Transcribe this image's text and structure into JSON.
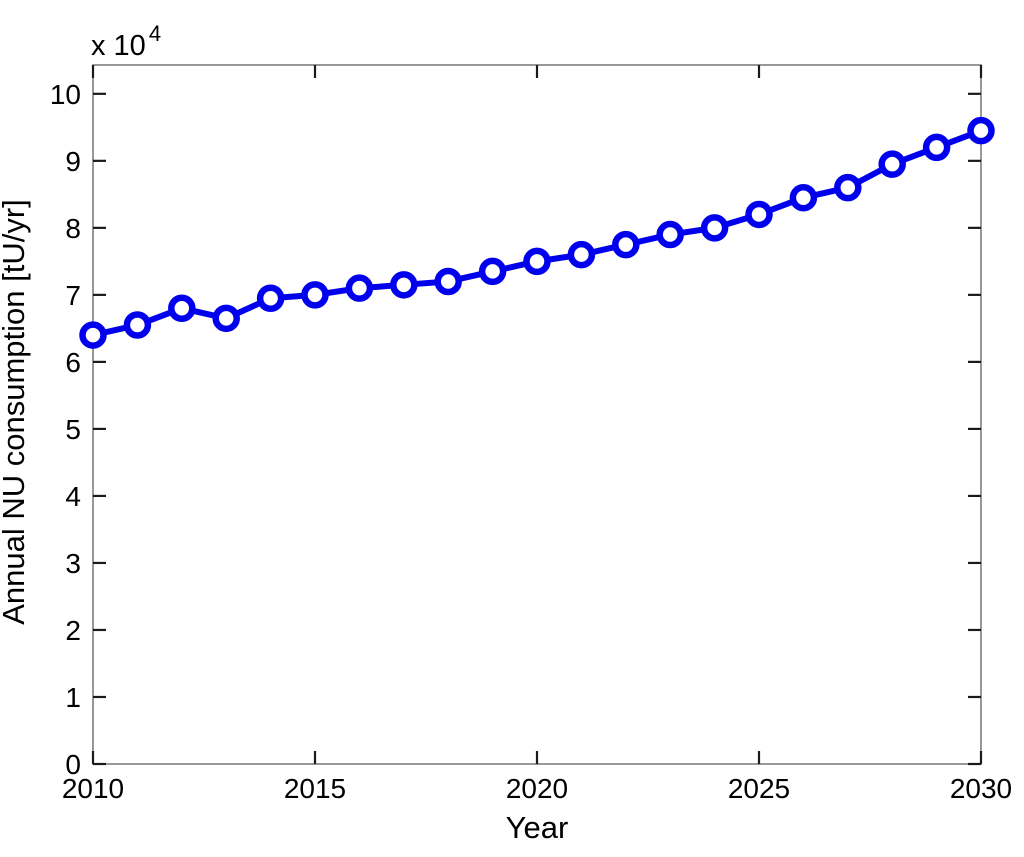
{
  "figure": {
    "background": "#ffffff",
    "y_multiplier_base": "x 10",
    "y_multiplier_exp": "4"
  },
  "chart_data": {
    "type": "line",
    "title": "",
    "xlabel": "Year",
    "ylabel": "Annual NU consumption [tU/yr]",
    "y_unit_note": "y-axis values are in units of 10^4 tU/yr (axis multiplier 'x 10^4')",
    "x": [
      2010,
      2011,
      2012,
      2013,
      2014,
      2015,
      2016,
      2017,
      2018,
      2019,
      2020,
      2021,
      2022,
      2023,
      2024,
      2025,
      2026,
      2027,
      2028,
      2029,
      2030
    ],
    "y_values_x1e4": [
      6.4,
      6.55,
      6.8,
      6.65,
      6.95,
      7.0,
      7.1,
      7.15,
      7.2,
      7.35,
      7.5,
      7.6,
      7.75,
      7.9,
      8.0,
      8.2,
      8.45,
      8.6,
      8.95,
      9.2,
      9.45
    ],
    "x_ticks": [
      2010,
      2015,
      2020,
      2025,
      2030
    ],
    "x_tick_labels": [
      "2010",
      "2015",
      "2020",
      "2025",
      "2030"
    ],
    "y_ticks": [
      0,
      1,
      2,
      3,
      4,
      5,
      6,
      7,
      8,
      9,
      10
    ],
    "y_tick_labels": [
      "0",
      "1",
      "2",
      "3",
      "4",
      "5",
      "6",
      "7",
      "8",
      "9",
      "10"
    ],
    "xlim": [
      2010,
      2030
    ],
    "ylim": [
      0,
      10.43
    ],
    "grid": false,
    "legend": null,
    "line_color": "#0000ee",
    "marker": "circle",
    "marker_fill": "#ffffff",
    "axis_color": "#6b6b6b",
    "tick_color": "#1a1a1a",
    "text_color": "#000000"
  }
}
